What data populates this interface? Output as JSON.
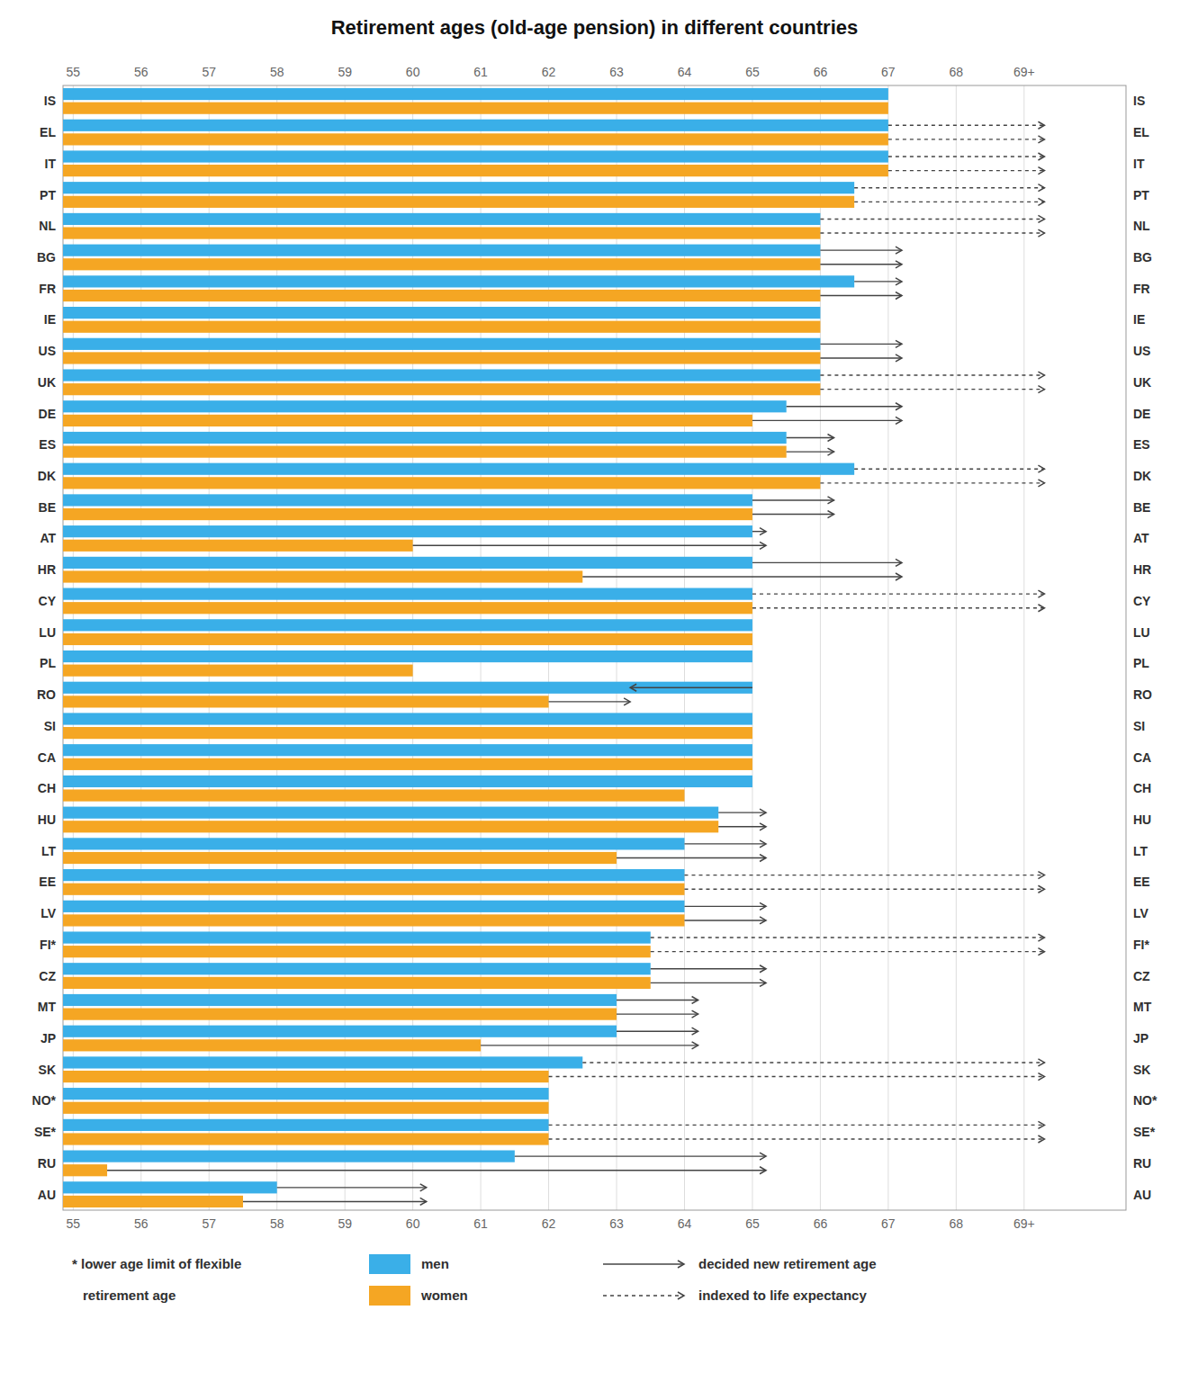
{
  "chart_data": {
    "type": "bar",
    "orientation": "horizontal",
    "title": "Retirement ages (old-age pension) in different countries",
    "categories": [
      "IS",
      "EL",
      "IT",
      "PT",
      "NL",
      "BG",
      "FR",
      "IE",
      "US",
      "UK",
      "DE",
      "ES",
      "DK",
      "BE",
      "AT",
      "HR",
      "CY",
      "LU",
      "PL",
      "RO",
      "SI",
      "CA",
      "CH",
      "HU",
      "LT",
      "EE",
      "LV",
      "FI*",
      "CZ",
      "MT",
      "JP",
      "SK",
      "NO*",
      "SE*",
      "RU",
      "AU"
    ],
    "series": [
      {
        "name": "men",
        "color": "#3AAFE8",
        "values": [
          67.0,
          67.0,
          67.0,
          66.5,
          66.0,
          66.0,
          66.5,
          66.0,
          66.0,
          66.0,
          65.5,
          65.5,
          66.5,
          65.0,
          65.0,
          65.0,
          65.0,
          65.0,
          65.0,
          65.0,
          65.0,
          65.0,
          65.0,
          64.5,
          64.0,
          64.0,
          64.0,
          63.5,
          63.5,
          63.0,
          63.0,
          62.5,
          62.0,
          62.0,
          61.5,
          58.0
        ],
        "arrow_end": [
          null,
          69.3,
          69.3,
          69.3,
          69.3,
          67.2,
          67.2,
          null,
          67.2,
          69.3,
          67.2,
          66.2,
          69.3,
          66.2,
          65.2,
          67.2,
          69.3,
          null,
          null,
          63.2,
          null,
          null,
          null,
          65.2,
          65.2,
          69.3,
          65.2,
          69.3,
          65.2,
          64.2,
          64.2,
          69.3,
          null,
          69.3,
          65.2,
          60.2
        ],
        "arrow_dotted": [
          false,
          true,
          true,
          true,
          true,
          false,
          false,
          false,
          false,
          true,
          false,
          false,
          true,
          false,
          false,
          false,
          true,
          false,
          false,
          false,
          false,
          false,
          false,
          false,
          false,
          true,
          false,
          true,
          false,
          false,
          false,
          true,
          false,
          true,
          false,
          false
        ]
      },
      {
        "name": "women",
        "color": "#F5A623",
        "values": [
          67.0,
          67.0,
          67.0,
          66.5,
          66.0,
          66.0,
          66.0,
          66.0,
          66.0,
          66.0,
          65.0,
          65.5,
          66.0,
          65.0,
          60.0,
          62.5,
          65.0,
          65.0,
          60.0,
          62.0,
          65.0,
          65.0,
          64.0,
          64.5,
          63.0,
          64.0,
          64.0,
          63.5,
          63.5,
          63.0,
          61.0,
          62.0,
          62.0,
          62.0,
          55.5,
          57.5
        ],
        "arrow_end": [
          null,
          69.3,
          69.3,
          69.3,
          69.3,
          67.2,
          67.2,
          null,
          67.2,
          69.3,
          67.2,
          66.2,
          69.3,
          66.2,
          65.2,
          67.2,
          69.3,
          null,
          null,
          63.2,
          null,
          null,
          null,
          65.2,
          65.2,
          69.3,
          65.2,
          69.3,
          65.2,
          64.2,
          64.2,
          69.3,
          null,
          69.3,
          65.2,
          60.2
        ],
        "arrow_dotted": [
          false,
          true,
          true,
          true,
          true,
          false,
          false,
          false,
          false,
          true,
          false,
          false,
          true,
          false,
          false,
          false,
          true,
          false,
          false,
          false,
          false,
          false,
          false,
          false,
          false,
          true,
          false,
          true,
          false,
          false,
          false,
          true,
          false,
          true,
          false,
          false
        ]
      }
    ],
    "xlim": [
      54.85,
      70.5
    ],
    "xticks": [
      55,
      56,
      57,
      58,
      59,
      60,
      61,
      62,
      63,
      64,
      65,
      66,
      67,
      68,
      {
        "value": 69,
        "label": "69+"
      }
    ],
    "grid": true,
    "legend": "bottom",
    "arrow_legend": {
      "solid": "decided new retirement age",
      "dotted": "indexed to life expectancy"
    },
    "note": [
      "* lower age limit of flexible",
      "retirement age"
    ]
  }
}
